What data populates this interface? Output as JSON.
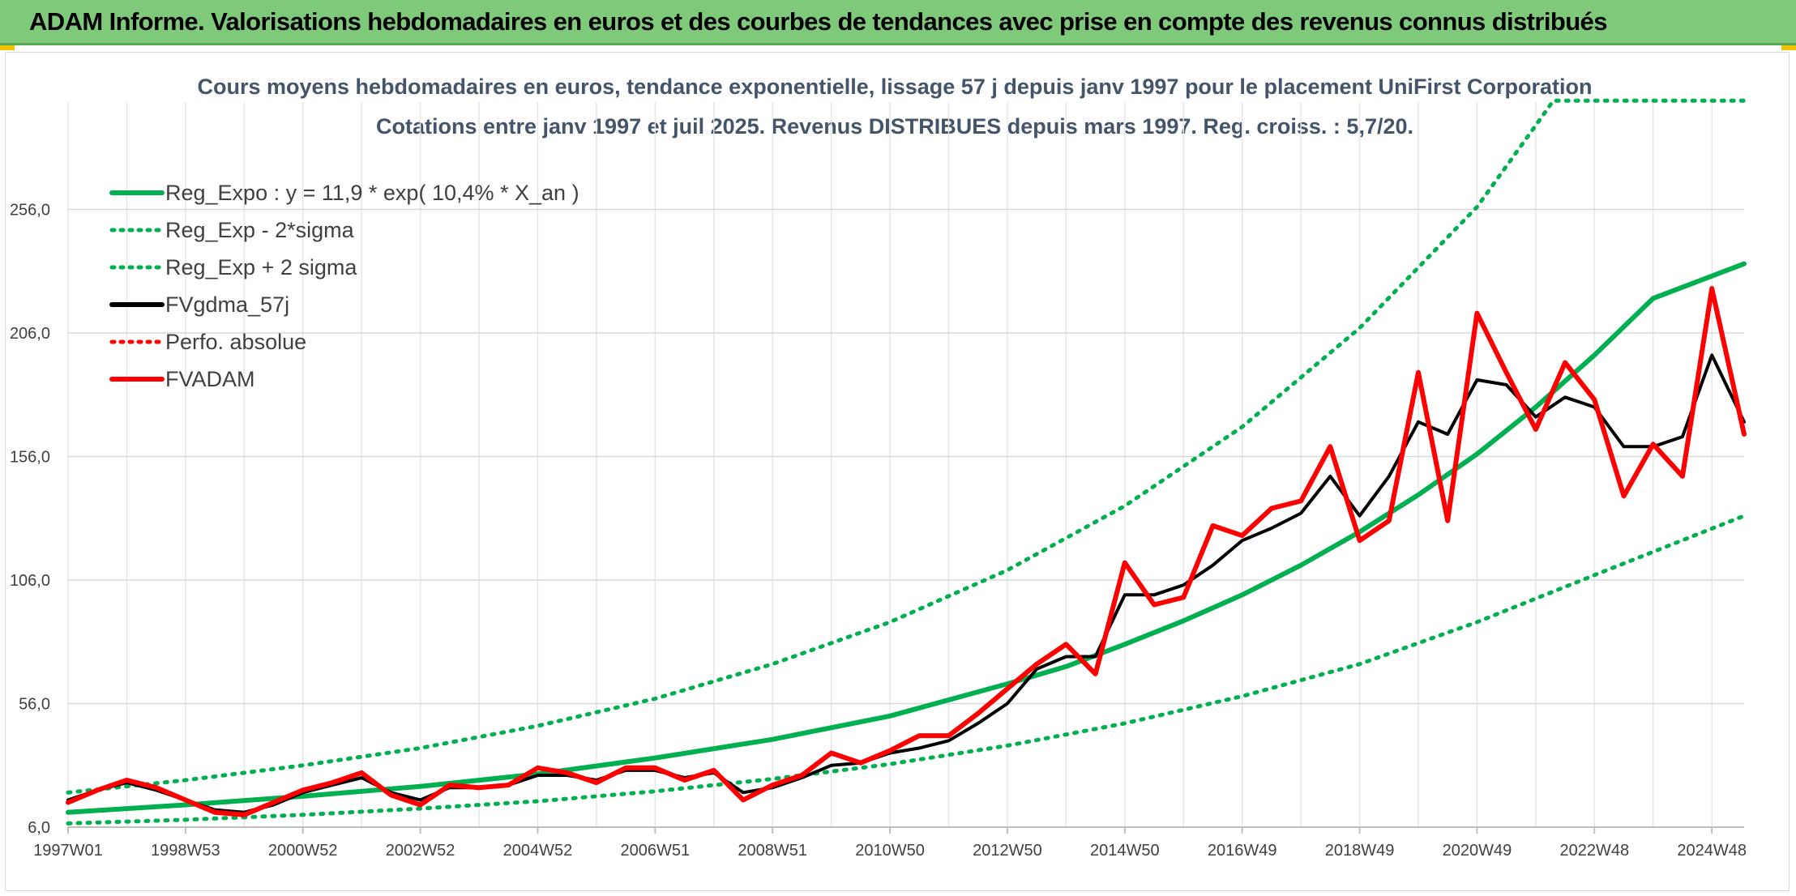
{
  "banner": {
    "title": "ADAM Informe. Valorisations hebdomadaires en euros et des courbes de tendances avec prise en compte des revenus connus distribués"
  },
  "colors": {
    "banner_bg": "#7fc97a",
    "trend": "#00b050",
    "price": "#ff0000",
    "smooth": "#000000",
    "grid": "#d9d9d9",
    "title": "#44546a"
  },
  "chart_data": {
    "type": "line",
    "title_lines": [
      "Cours moyens hebdomadaires en euros, tendance exponentielle, lissage 57 j depuis janv 1997 pour le placement UniFirst Corporation",
      "Cotations entre janv 1997 et juil 2025. Revenus DISTRIBUES depuis mars 1997. Reg. croiss. : 5,7/20."
    ],
    "ylim": [
      6,
      306
    ],
    "xlim": [
      1997.0,
      2025.55
    ],
    "y_ticks": [
      "6,0",
      "56,0",
      "106,0",
      "156,0",
      "206,0",
      "256,0"
    ],
    "y_tick_values": [
      6,
      56,
      106,
      156,
      206,
      256
    ],
    "x_ticks": [
      "1997W01",
      "1998W53",
      "2000W52",
      "2002W52",
      "2004W52",
      "2006W51",
      "2008W51",
      "2010W50",
      "2012W50",
      "2014W50",
      "2016W49",
      "2018W49",
      "2020W49",
      "2022W48",
      "2024W48"
    ],
    "x_tick_values": [
      1997.0,
      1999.0,
      2001.0,
      2003.0,
      2005.0,
      2007.0,
      2009.0,
      2011.0,
      2013.0,
      2015.0,
      2017.0,
      2019.0,
      2021.0,
      2023.0,
      2025.0
    ],
    "grid": true,
    "legend_position": "top-left",
    "series": [
      {
        "name": "Reg_Expo : y = 11,9 * exp( 10,4% *  X_an )",
        "style": "solid",
        "color": "#00b050",
        "width": 6,
        "x": [
          1997.0,
          1999.0,
          2001.0,
          2003.0,
          2005.0,
          2007.0,
          2009.0,
          2011.0,
          2013.0,
          2014.0,
          2015.0,
          2016.0,
          2017.0,
          2018.0,
          2019.0,
          2020.0,
          2021.0,
          2022.0,
          2023.0,
          2024.0,
          2025.55
        ],
        "y": [
          12,
          15,
          18.5,
          22.5,
          27.5,
          34,
          41.5,
          51,
          64,
          71,
          80,
          89.5,
          100,
          112,
          125.5,
          140.5,
          157,
          176,
          197,
          220,
          234
        ]
      },
      {
        "name": "Reg_Exp - 2*sigma",
        "style": "dotted",
        "color": "#00b050",
        "width": 5,
        "x": [
          1997.0,
          1999.0,
          2001.0,
          2003.0,
          2005.0,
          2007.0,
          2009.0,
          2011.0,
          2013.0,
          2015.0,
          2017.0,
          2019.0,
          2021.0,
          2023.0,
          2025.55
        ],
        "y": [
          7.5,
          9,
          11,
          13.5,
          16.5,
          20.5,
          25.5,
          31.5,
          39,
          48,
          59,
          72,
          89,
          108,
          132
        ]
      },
      {
        "name": "Reg_Exp + 2 sigma",
        "style": "dotted",
        "color": "#00b050",
        "width": 5,
        "x": [
          1997.0,
          1999.0,
          2001.0,
          2003.0,
          2005.0,
          2007.0,
          2009.0,
          2011.0,
          2013.0,
          2015.0,
          2017.0,
          2019.0,
          2021.0,
          2022.0,
          2022.3,
          2025.55
        ],
        "y": [
          20,
          25,
          31,
          38,
          47,
          58,
          72,
          89,
          110,
          136,
          168,
          208,
          257,
          290,
          300,
          300
        ]
      },
      {
        "name": "FVgdma_57j",
        "style": "solid",
        "color": "#000000",
        "width": 4,
        "x": [
          1997.0,
          1997.5,
          1998.0,
          1998.5,
          1999.0,
          1999.5,
          2000.0,
          2000.5,
          2001.0,
          2001.5,
          2002.0,
          2002.5,
          2003.0,
          2003.5,
          2004.0,
          2004.5,
          2005.0,
          2005.5,
          2006.0,
          2006.5,
          2007.0,
          2007.5,
          2008.0,
          2008.5,
          2009.0,
          2009.5,
          2010.0,
          2010.5,
          2011.0,
          2011.5,
          2012.0,
          2012.5,
          2013.0,
          2013.5,
          2014.0,
          2014.5,
          2015.0,
          2015.5,
          2016.0,
          2016.5,
          2017.0,
          2017.5,
          2018.0,
          2018.5,
          2019.0,
          2019.5,
          2020.0,
          2020.5,
          2021.0,
          2021.5,
          2022.0,
          2022.5,
          2023.0,
          2023.5,
          2024.0,
          2024.5,
          2025.0,
          2025.55
        ],
        "y": [
          17,
          21,
          24,
          21,
          17,
          13,
          12,
          15,
          20,
          23,
          26,
          20,
          17,
          22,
          22,
          23,
          27,
          27,
          25,
          29,
          29,
          26,
          28,
          20,
          22,
          26,
          31,
          32,
          36,
          38,
          41,
          48,
          56,
          70,
          75,
          75,
          100,
          100,
          104,
          112,
          122,
          127,
          133,
          148,
          132,
          148,
          170,
          165,
          187,
          185,
          172,
          180,
          176,
          160,
          160,
          164,
          197,
          170
        ]
      },
      {
        "name": "Perfo. absolue",
        "style": "dotted",
        "color": "#ff0000",
        "width": 3,
        "x": [],
        "y": []
      },
      {
        "name": "FVADAM",
        "style": "solid",
        "color": "#ff0000",
        "width": 6,
        "x": [
          1997.0,
          1997.5,
          1998.0,
          1998.5,
          1999.0,
          1999.5,
          2000.0,
          2000.5,
          2001.0,
          2001.5,
          2002.0,
          2002.5,
          2003.0,
          2003.5,
          2004.0,
          2004.5,
          2005.0,
          2005.5,
          2006.0,
          2006.5,
          2007.0,
          2007.5,
          2008.0,
          2008.5,
          2009.0,
          2009.5,
          2010.0,
          2010.5,
          2011.0,
          2011.5,
          2012.0,
          2012.5,
          2013.0,
          2013.5,
          2014.0,
          2014.5,
          2015.0,
          2015.5,
          2016.0,
          2016.5,
          2017.0,
          2017.5,
          2018.0,
          2018.5,
          2019.0,
          2019.5,
          2020.0,
          2020.5,
          2021.0,
          2021.5,
          2022.0,
          2022.5,
          2023.0,
          2023.5,
          2024.0,
          2024.5,
          2025.0,
          2025.55
        ],
        "y": [
          16,
          21,
          25,
          22,
          17,
          12,
          11,
          16,
          21,
          24,
          28,
          19,
          15,
          23,
          22,
          23,
          30,
          28,
          24,
          30,
          30,
          25,
          29,
          17,
          23,
          27,
          36,
          32,
          37,
          43,
          43,
          52,
          62,
          72,
          80,
          68,
          113,
          96,
          99,
          128,
          124,
          135,
          138,
          160,
          122,
          130,
          190,
          130,
          214,
          190,
          167,
          194,
          179,
          140,
          161,
          148,
          224,
          165
        ]
      }
    ]
  }
}
